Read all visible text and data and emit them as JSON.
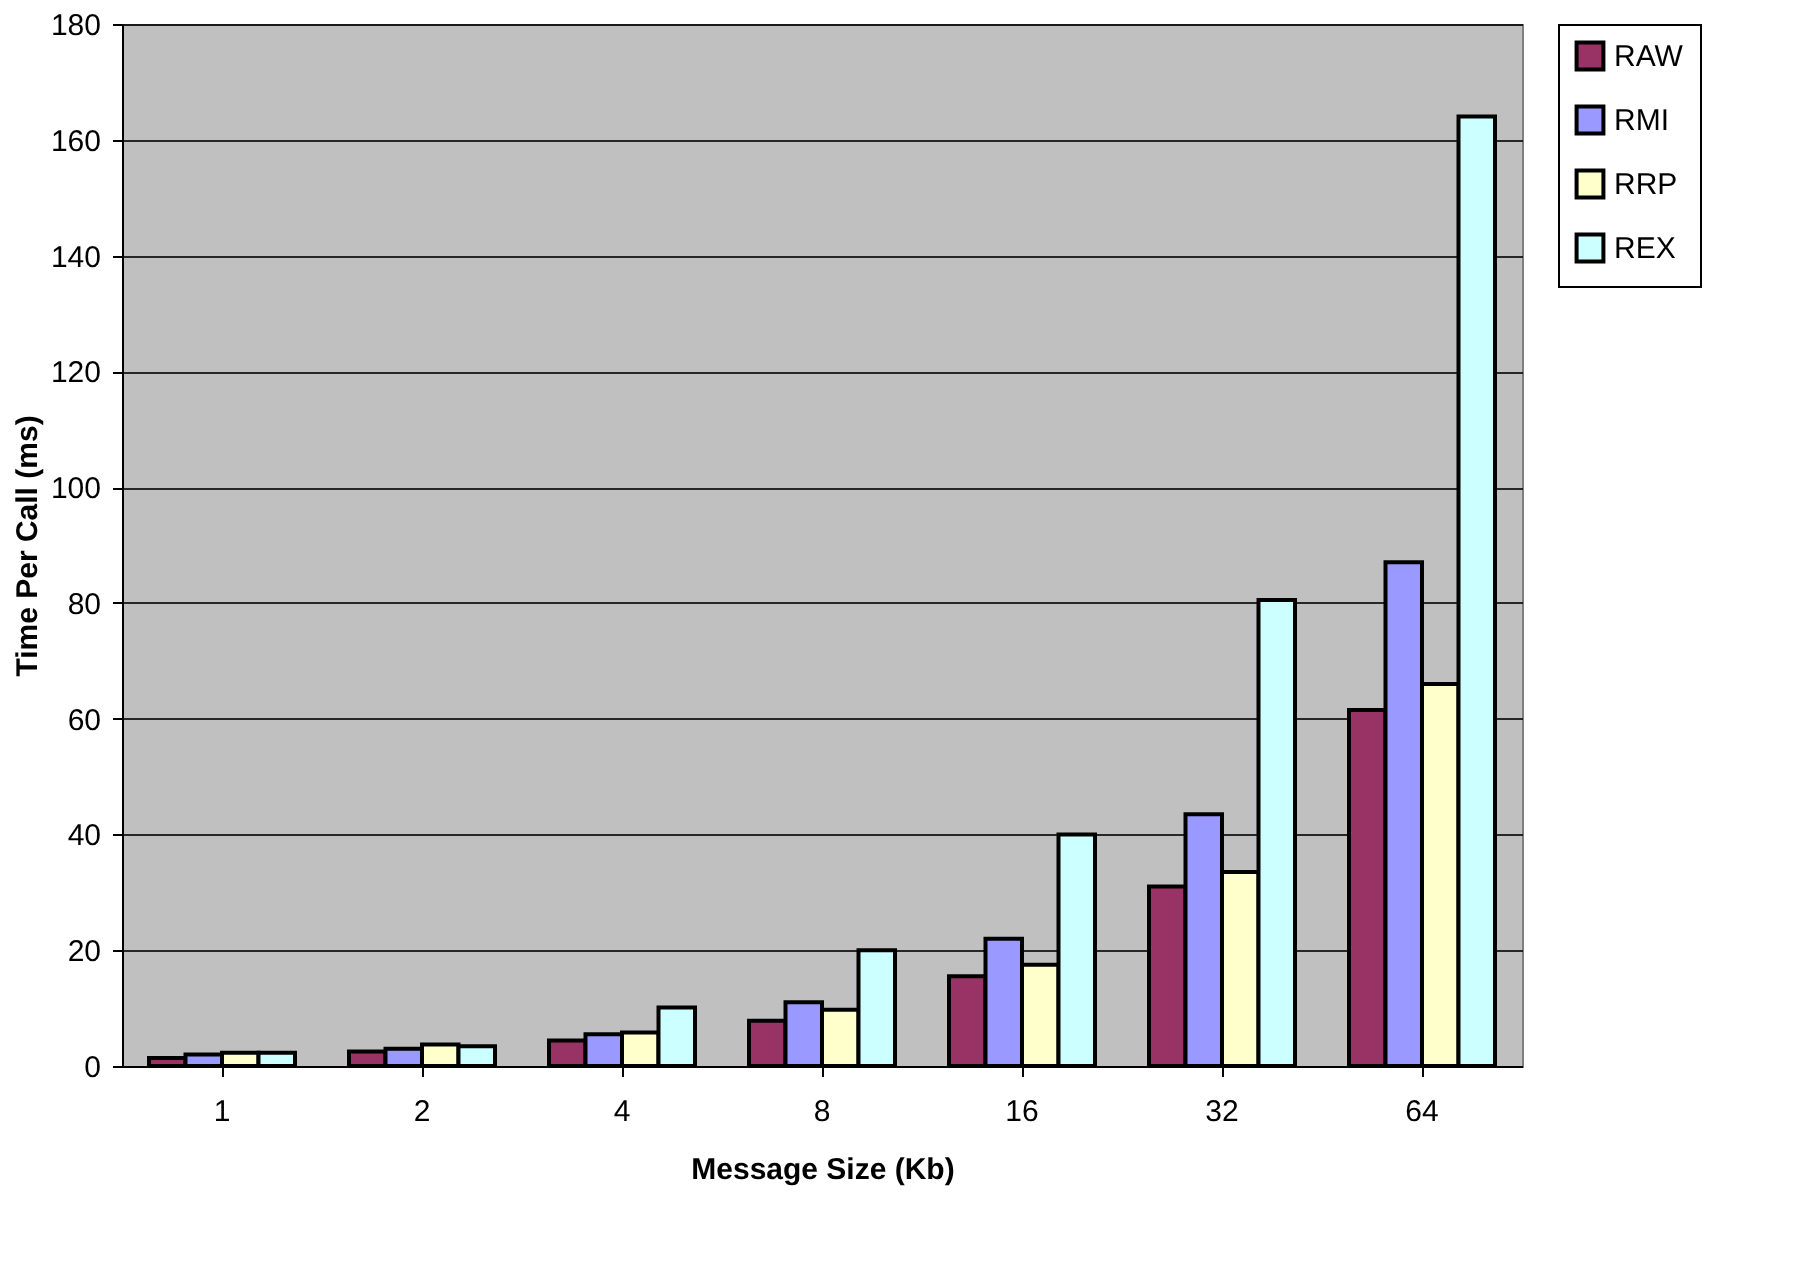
{
  "chart_data": {
    "type": "bar",
    "xlabel": "Message Size (Kb)",
    "ylabel": "Time Per Call (ms)",
    "categories": [
      "1",
      "2",
      "4",
      "8",
      "16",
      "32",
      "64"
    ],
    "series": [
      {
        "name": "RAW",
        "color": "#993366",
        "values": [
          1.4,
          2.5,
          4.4,
          7.8,
          15.5,
          31,
          61.5
        ]
      },
      {
        "name": "RMI",
        "color": "#9999ff",
        "values": [
          2.0,
          3.0,
          5.5,
          11,
          22,
          43.5,
          87
        ]
      },
      {
        "name": "RRP",
        "color": "#ffffcc",
        "values": [
          2.3,
          3.7,
          5.8,
          9.7,
          17.5,
          33.5,
          66
        ]
      },
      {
        "name": "REX",
        "color": "#ccffff",
        "values": [
          2.3,
          3.4,
          10.1,
          20,
          40,
          80.5,
          164
        ]
      }
    ],
    "ylim": [
      0,
      180
    ],
    "yticks": [
      0,
      20,
      40,
      60,
      80,
      100,
      120,
      140,
      160,
      180
    ],
    "grid": "y",
    "legend": "right"
  }
}
